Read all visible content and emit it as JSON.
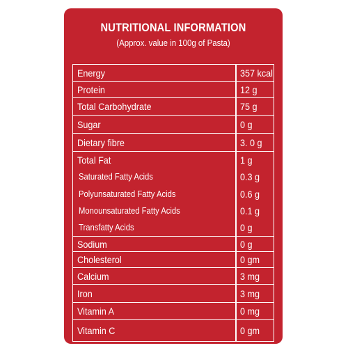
{
  "header": {
    "title": "NUTRITIONAL INFORMATION",
    "subtitle": "(Approx. value in 100g of Pasta)"
  },
  "nutrients": [
    {
      "name": "Energy",
      "value": "357 kcal"
    },
    {
      "name": "Protein",
      "value": "12 g"
    },
    {
      "name": "Total Carbohydrate",
      "value": "75 g"
    },
    {
      "name": "Sugar",
      "value": "0 g"
    },
    {
      "name": "Dietary fibre",
      "value": "3. 0 g"
    },
    {
      "name": "Total Fat",
      "value": "1 g"
    },
    {
      "name": "Saturated Fatty Acids",
      "value": "0.3 g"
    },
    {
      "name": "Polyunsaturated Fatty Acids",
      "value": "0.6 g"
    },
    {
      "name": "Monounsaturated Fatty Acids",
      "value": "0.1 g"
    },
    {
      "name": "Transfatty Acids",
      "value": "0 g"
    },
    {
      "name": "Sodium",
      "value": "0 g"
    },
    {
      "name": "Cholesterol",
      "value": "0 gm"
    },
    {
      "name": "Calcium",
      "value": "3 mg"
    },
    {
      "name": "Iron",
      "value": "3 mg"
    },
    {
      "name": "Vitamin A",
      "value": "0 mg"
    },
    {
      "name": "Vitamin C",
      "value": "0 gm"
    }
  ],
  "colors": {
    "panel": "#c3232e",
    "text": "#ffffff",
    "background": "#ffffff"
  }
}
